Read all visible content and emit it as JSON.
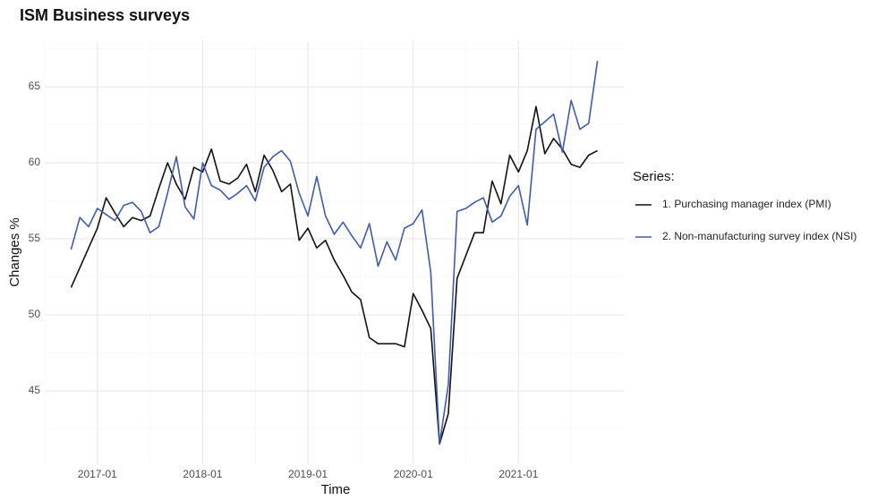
{
  "chart_data": {
    "type": "line",
    "title": "ISM Business surveys",
    "xlabel": "Time",
    "ylabel": "Changes %",
    "x": [
      "2016-10",
      "2016-11",
      "2016-12",
      "2017-01",
      "2017-02",
      "2017-03",
      "2017-04",
      "2017-05",
      "2017-06",
      "2017-07",
      "2017-08",
      "2017-09",
      "2017-10",
      "2017-11",
      "2017-12",
      "2018-01",
      "2018-02",
      "2018-03",
      "2018-04",
      "2018-05",
      "2018-06",
      "2018-07",
      "2018-08",
      "2018-09",
      "2018-10",
      "2018-11",
      "2018-12",
      "2019-01",
      "2019-02",
      "2019-03",
      "2019-04",
      "2019-05",
      "2019-06",
      "2019-07",
      "2019-08",
      "2019-09",
      "2019-10",
      "2019-11",
      "2019-12",
      "2020-01",
      "2020-02",
      "2020-03",
      "2020-04",
      "2020-05",
      "2020-06",
      "2020-07",
      "2020-08",
      "2020-09",
      "2020-10",
      "2020-11",
      "2020-12",
      "2021-01",
      "2021-02",
      "2021-03",
      "2021-04",
      "2021-05",
      "2021-06",
      "2021-07",
      "2021-08",
      "2021-09",
      "2021-10"
    ],
    "series": [
      {
        "name": "1. Purchasing manager index (PMI)",
        "color": "#111111",
        "values": [
          51.8,
          53.1,
          54.4,
          55.7,
          57.7,
          56.7,
          55.8,
          56.4,
          56.2,
          56.5,
          58.3,
          60.0,
          58.6,
          57.6,
          59.7,
          59.4,
          60.9,
          58.8,
          58.6,
          59.0,
          59.9,
          58.1,
          60.5,
          59.5,
          58.1,
          58.6,
          54.9,
          55.7,
          54.4,
          54.9,
          53.6,
          52.6,
          51.5,
          51.0,
          48.5,
          48.1,
          48.1,
          48.1,
          47.9,
          51.4,
          50.3,
          49.1,
          41.5,
          43.5,
          52.4,
          53.9,
          55.4,
          55.4,
          58.8,
          57.3,
          60.5,
          59.4,
          60.8,
          63.7,
          60.6,
          61.6,
          60.9,
          59.9,
          59.7,
          60.5,
          60.8
        ]
      },
      {
        "name": "2. Non-manufacturing survey index (NSI)",
        "color": "#3f5bb0",
        "values": [
          54.3,
          56.4,
          55.8,
          57.0,
          56.6,
          56.2,
          57.2,
          57.4,
          56.8,
          55.4,
          55.8,
          58.0,
          60.4,
          57.1,
          56.3,
          60.0,
          58.5,
          58.2,
          57.6,
          58.0,
          58.5,
          57.5,
          59.7,
          60.4,
          60.8,
          60.1,
          58.0,
          56.5,
          59.1,
          56.5,
          55.3,
          56.1,
          55.2,
          54.4,
          56.0,
          53.2,
          54.8,
          53.6,
          55.7,
          56.0,
          56.9,
          52.8,
          41.5,
          45.4,
          56.8,
          57.0,
          57.4,
          57.7,
          56.1,
          56.5,
          57.8,
          58.5,
          55.9,
          62.2,
          62.7,
          63.2,
          60.7,
          64.1,
          62.2,
          62.6,
          66.7
        ]
      }
    ],
    "legend_title": "Series:",
    "xlim": [
      "2016-07",
      "2022-01"
    ],
    "xticks": [
      "2017-01",
      "2018-01",
      "2019-01",
      "2020-01",
      "2021-01"
    ],
    "ylim": [
      40.2,
      68.0
    ],
    "yticks": [
      45,
      50,
      55,
      60,
      65
    ],
    "grid": true,
    "legend": "right"
  }
}
